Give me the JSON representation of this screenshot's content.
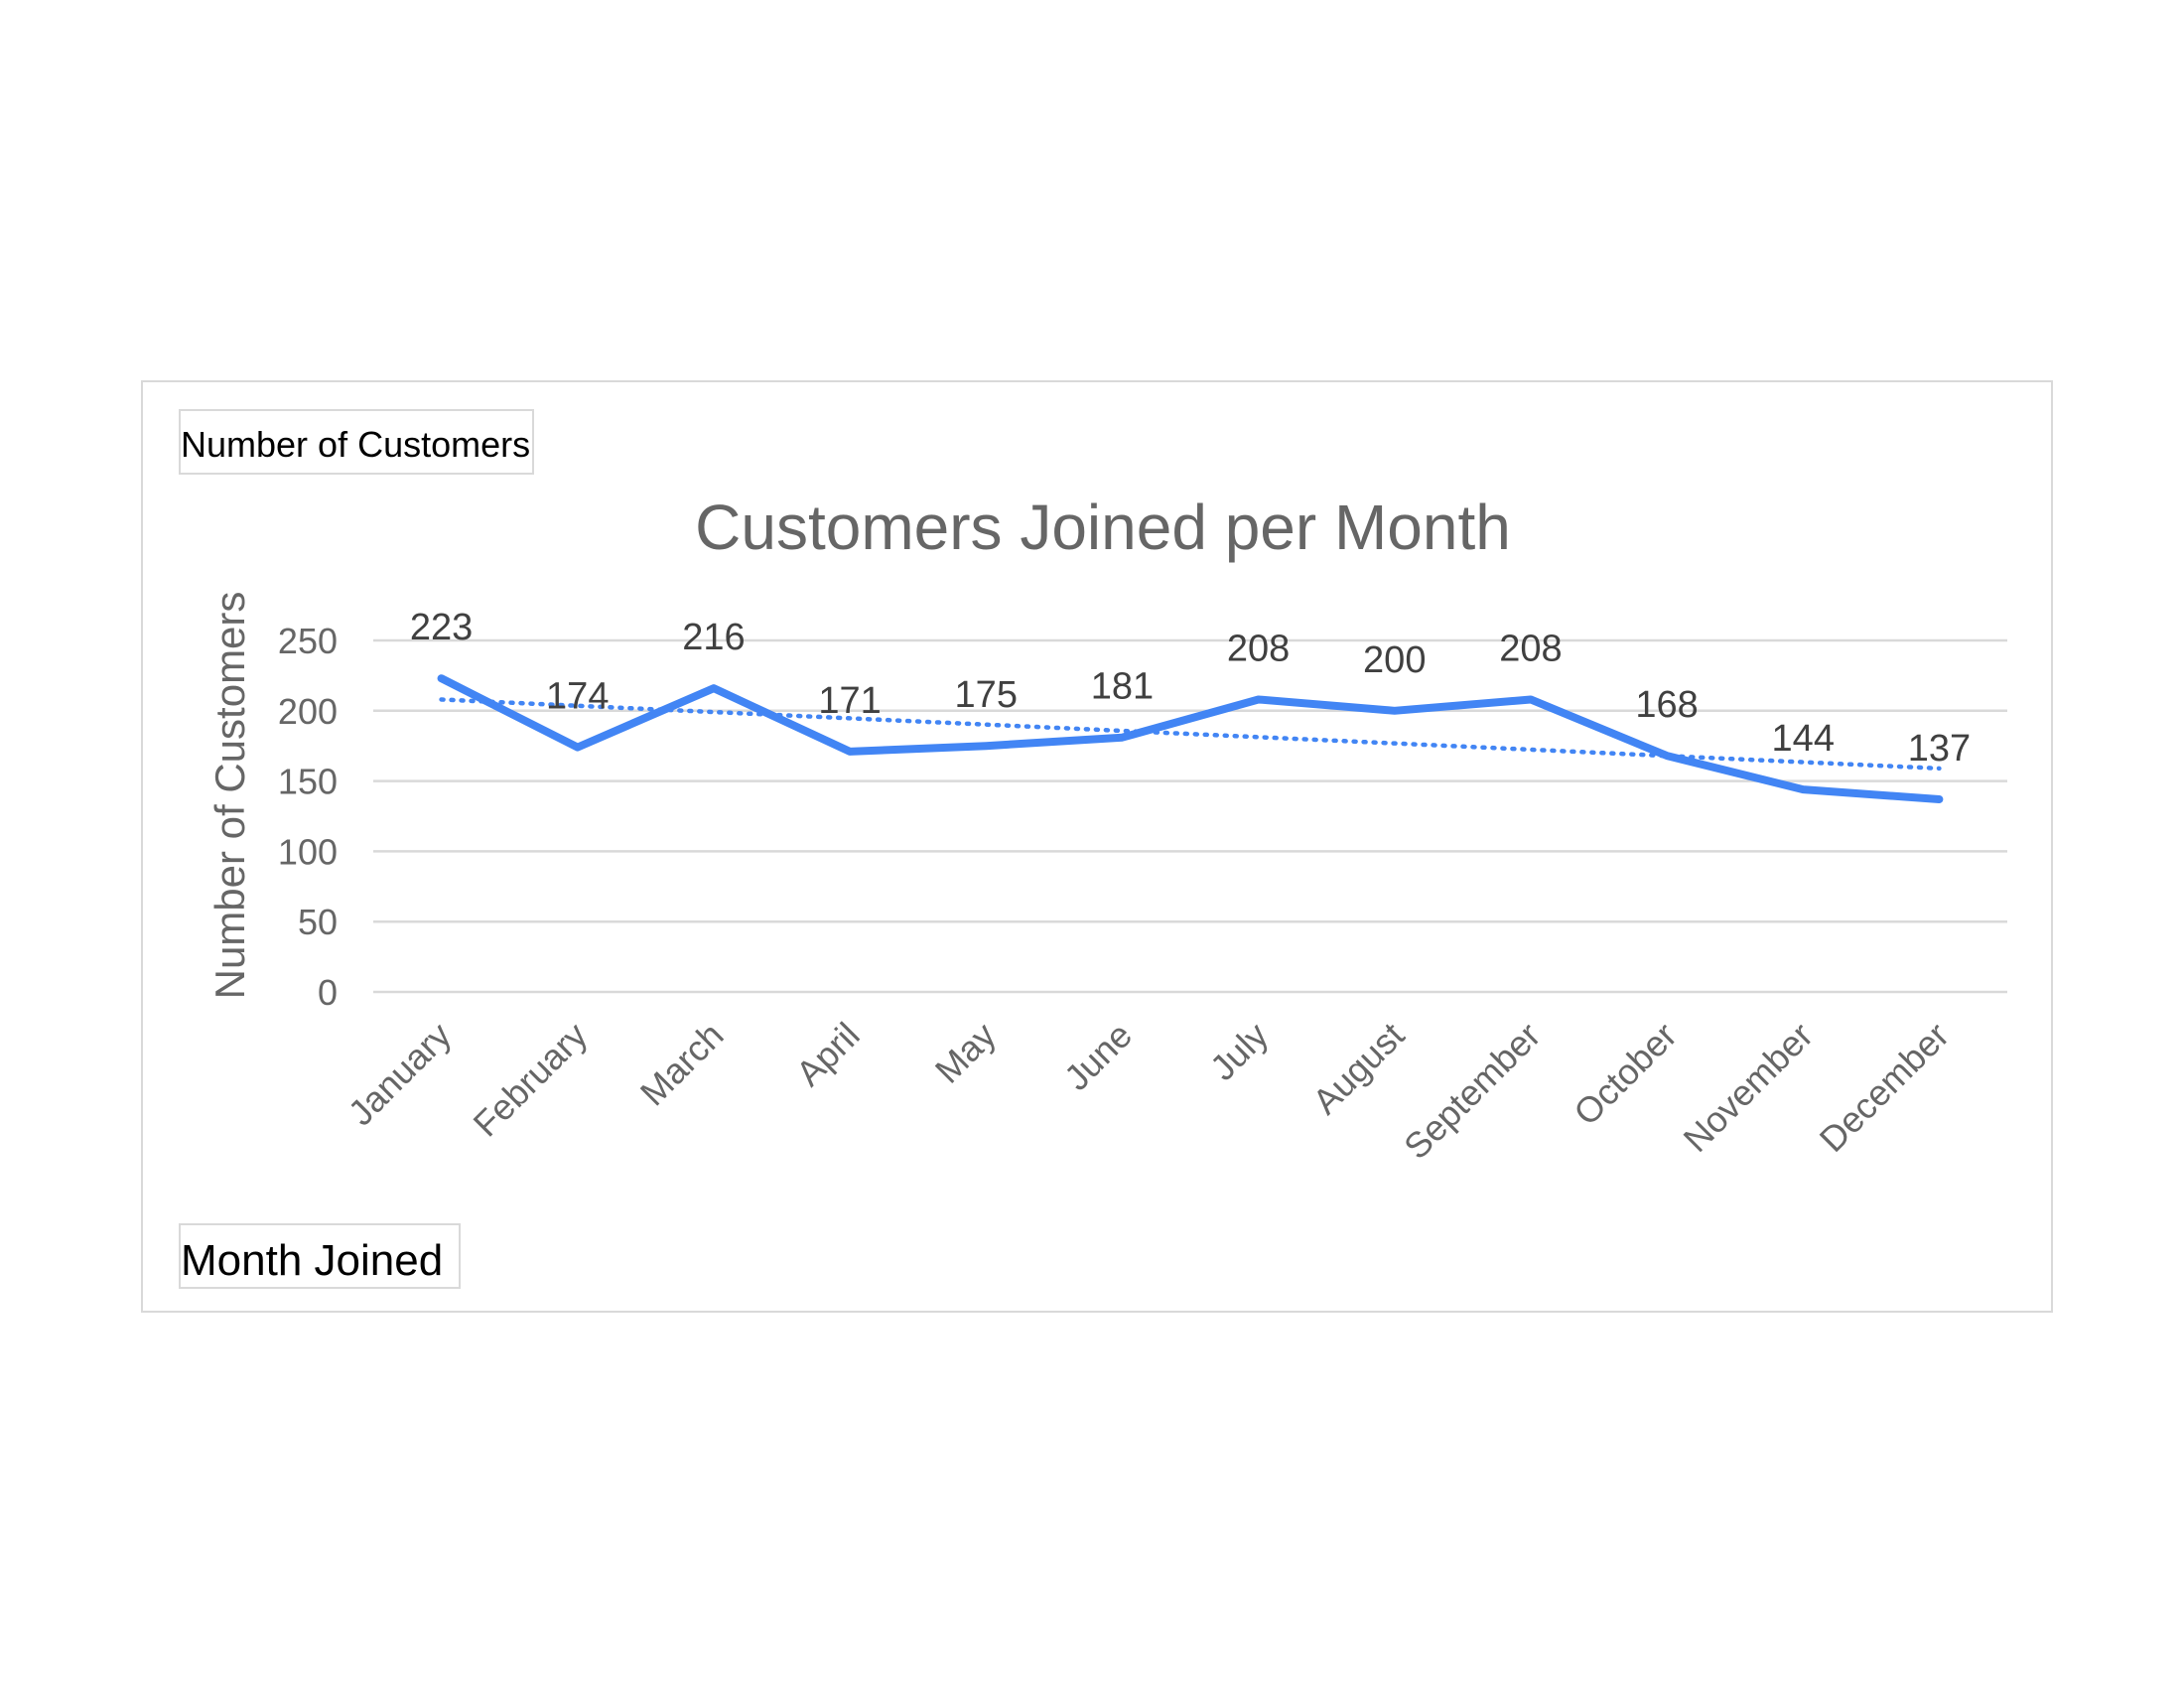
{
  "chart_data": {
    "type": "line",
    "title": "Customers Joined per Month",
    "xlabel": "Month Joined",
    "ylabel": "Number of Customers",
    "categories": [
      "January",
      "February",
      "March",
      "April",
      "May",
      "June",
      "July",
      "August",
      "September",
      "October",
      "November",
      "December"
    ],
    "series": [
      {
        "values": [
          223,
          174,
          216,
          171,
          175,
          181,
          208,
          200,
          208,
          168,
          144,
          137
        ],
        "color": "#4285f4",
        "style": "solid"
      }
    ],
    "trendline": {
      "type": "linear",
      "style": "dotted",
      "color": "#4285f4",
      "start": 208,
      "end": 159
    },
    "ylim": [
      0,
      250
    ],
    "yticks": [
      0,
      50,
      100,
      150,
      200,
      250
    ],
    "grid": true,
    "legend": "none",
    "data_labels": true
  },
  "axis_tags": {
    "y": "Number of Customers",
    "x": "Month Joined"
  }
}
